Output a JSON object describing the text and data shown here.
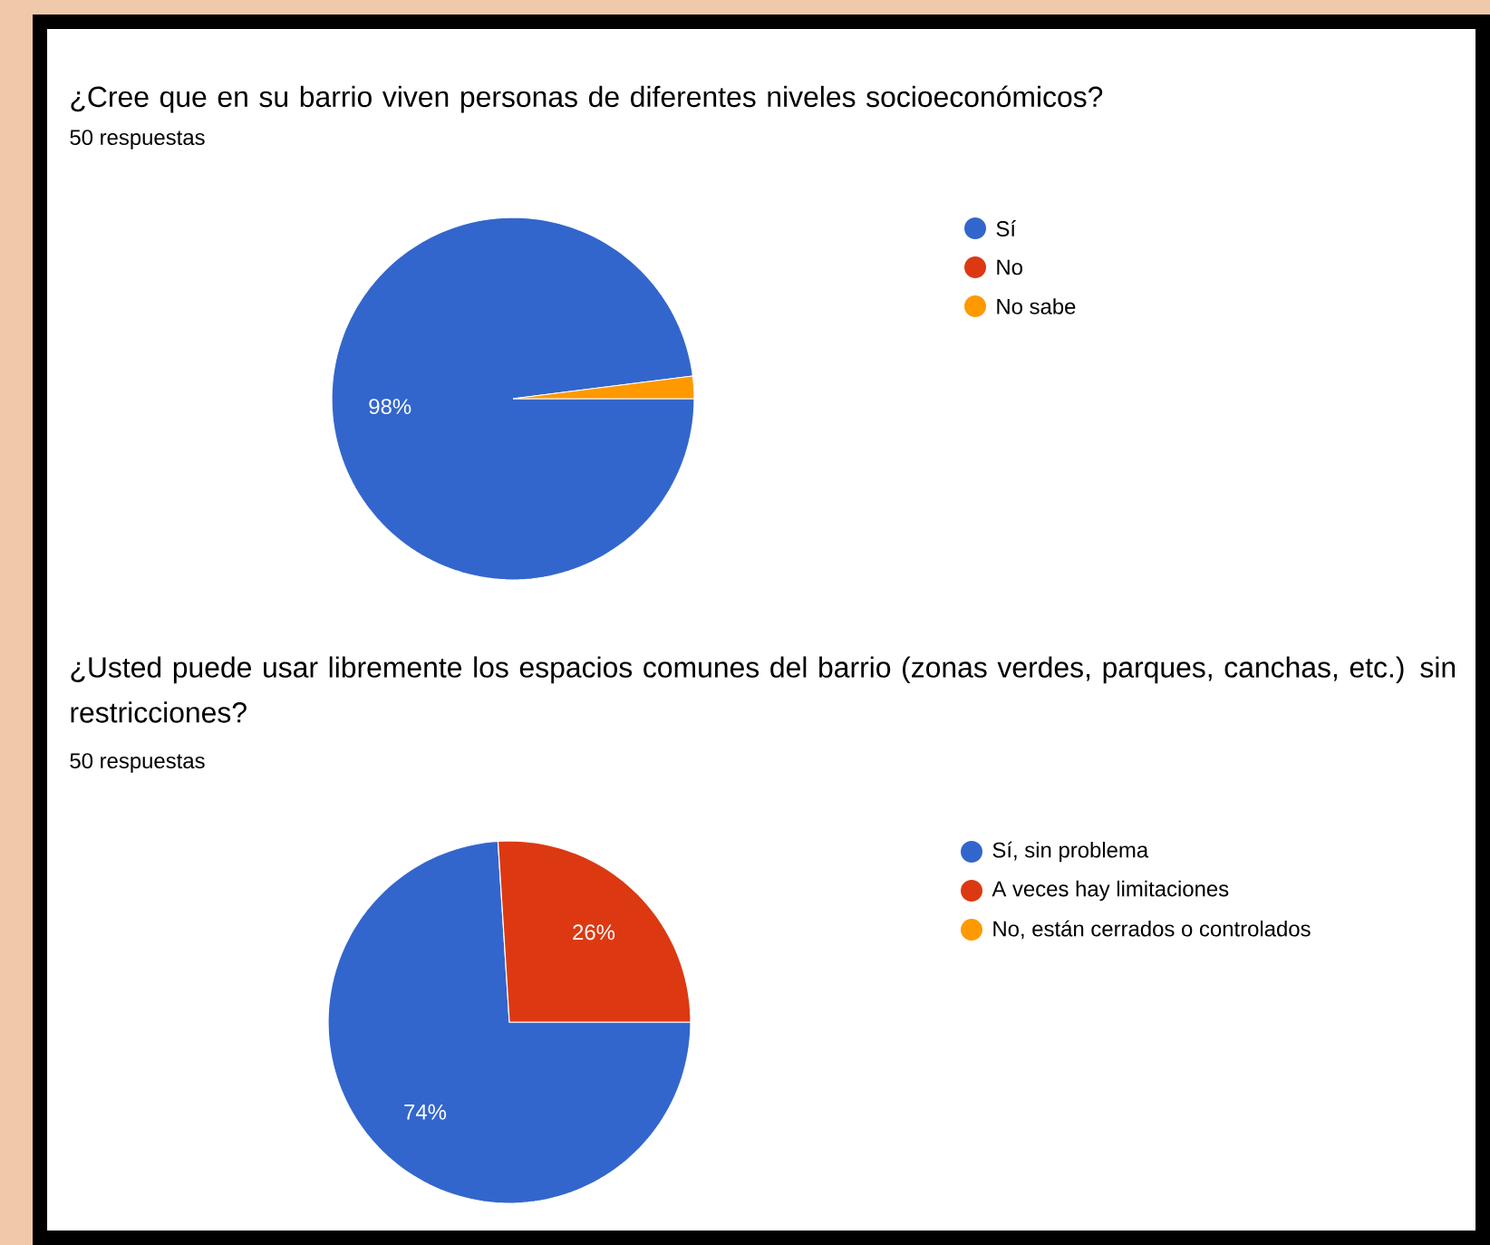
{
  "chart_data": [
    {
      "type": "pie",
      "title": "¿Cree que en su barrio viven personas de diferentes niveles socioeconómicos?",
      "subtitle": "50 respuestas",
      "categories": [
        "Sí",
        "No",
        "No sabe"
      ],
      "values": [
        98,
        0,
        2
      ],
      "colors": [
        "#3366cc",
        "#dc3912",
        "#ff9900"
      ],
      "value_labels": [
        "98%",
        null,
        null
      ],
      "legend": "right"
    },
    {
      "type": "pie",
      "title": "¿Usted puede usar libremente los espacios comunes del barrio (zonas verdes, parques, canchas, etc.) sin restricciones?",
      "subtitle": "50 respuestas",
      "categories": [
        "Sí, sin problema",
        "A veces hay limitaciones",
        "No, están cerrados o controlados"
      ],
      "values": [
        74,
        26,
        0
      ],
      "colors": [
        "#3366cc",
        "#dc3912",
        "#ff9900"
      ],
      "value_labels": [
        "74%",
        "26%",
        null
      ],
      "legend": "right"
    }
  ]
}
